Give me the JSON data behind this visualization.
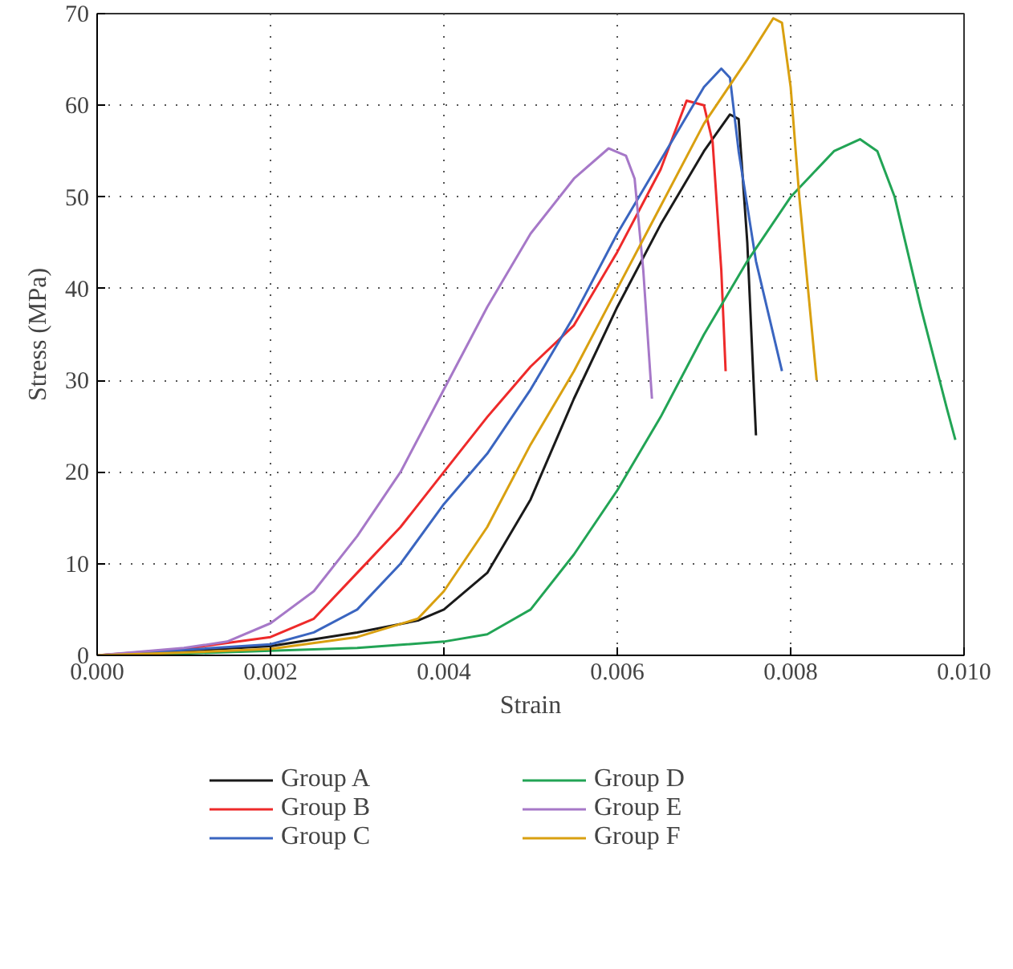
{
  "chart_data": {
    "type": "line",
    "xlabel": "Strain",
    "ylabel": "Stress (MPa)",
    "xlim": [
      0,
      0.01
    ],
    "ylim": [
      0,
      70
    ],
    "xticks": [
      {
        "value": 0,
        "label": "0.000"
      },
      {
        "value": 0.002,
        "label": "0.002"
      },
      {
        "value": 0.004,
        "label": "0.004"
      },
      {
        "value": 0.006,
        "label": "0.006"
      },
      {
        "value": 0.008,
        "label": "0.008"
      },
      {
        "value": 0.01,
        "label": "0.010"
      }
    ],
    "yticks": [
      0,
      10,
      20,
      30,
      40,
      50,
      60,
      70
    ],
    "grid": true,
    "legend": "bottom",
    "line_style": "solid",
    "marker": "none",
    "series": [
      {
        "name": "Group A",
        "color": "#1a1a1a",
        "x": [
          0,
          0.001,
          0.002,
          0.003,
          0.0037,
          0.004,
          0.0045,
          0.005,
          0.0055,
          0.006,
          0.0065,
          0.007,
          0.0073,
          0.0074,
          0.0075,
          0.0076
        ],
        "values": [
          0,
          0.5,
          1,
          2.5,
          3.8,
          5,
          9,
          17,
          28,
          38,
          47,
          55,
          59,
          58.5,
          45,
          24
        ]
      },
      {
        "name": "Group B",
        "color": "#ee2a2a",
        "x": [
          0,
          0.001,
          0.002,
          0.0025,
          0.003,
          0.0035,
          0.004,
          0.0045,
          0.005,
          0.0055,
          0.006,
          0.0065,
          0.0068,
          0.007,
          0.0071,
          0.0072,
          0.00725
        ],
        "values": [
          0,
          0.7,
          2,
          4,
          9,
          14,
          20,
          26,
          31.5,
          36,
          44,
          53,
          60.5,
          60,
          56,
          42,
          31
        ]
      },
      {
        "name": "Group C",
        "color": "#3a65c0",
        "x": [
          0,
          0.001,
          0.002,
          0.0025,
          0.003,
          0.0035,
          0.004,
          0.0045,
          0.005,
          0.0055,
          0.006,
          0.0065,
          0.007,
          0.0072,
          0.0073,
          0.0074,
          0.0076,
          0.0079
        ],
        "values": [
          0,
          0.6,
          1.2,
          2.5,
          5,
          10,
          16.5,
          22,
          29,
          37,
          46,
          54,
          62,
          64,
          63,
          55,
          43,
          31
        ]
      },
      {
        "name": "Group D",
        "color": "#22a455",
        "x": [
          0,
          0.001,
          0.002,
          0.003,
          0.004,
          0.0045,
          0.005,
          0.0055,
          0.006,
          0.0065,
          0.007,
          0.0075,
          0.008,
          0.0085,
          0.0088,
          0.009,
          0.0092,
          0.0095,
          0.0098,
          0.0099
        ],
        "values": [
          0,
          0.2,
          0.5,
          0.8,
          1.5,
          2.3,
          5,
          11,
          18,
          26,
          35,
          43,
          50,
          55,
          56.3,
          55,
          50,
          38,
          27,
          23.5
        ]
      },
      {
        "name": "Group E",
        "color": "#a678c8",
        "x": [
          0,
          0.001,
          0.0015,
          0.002,
          0.0025,
          0.003,
          0.0035,
          0.004,
          0.0045,
          0.005,
          0.0055,
          0.0059,
          0.0061,
          0.0062,
          0.0063,
          0.0064
        ],
        "values": [
          0,
          0.8,
          1.5,
          3.5,
          7,
          13,
          20,
          29,
          38,
          46,
          52,
          55.3,
          54.5,
          52,
          42,
          28
        ]
      },
      {
        "name": "Group F",
        "color": "#d9a010",
        "x": [
          0,
          0.001,
          0.002,
          0.003,
          0.0037,
          0.004,
          0.0045,
          0.005,
          0.0055,
          0.006,
          0.0065,
          0.007,
          0.0075,
          0.0078,
          0.0079,
          0.008,
          0.0081,
          0.0082,
          0.0083
        ],
        "values": [
          0,
          0.3,
          0.7,
          2,
          4,
          7,
          14,
          23,
          31,
          40,
          49,
          58,
          65,
          69.5,
          69,
          62,
          50,
          40,
          30
        ]
      }
    ]
  }
}
